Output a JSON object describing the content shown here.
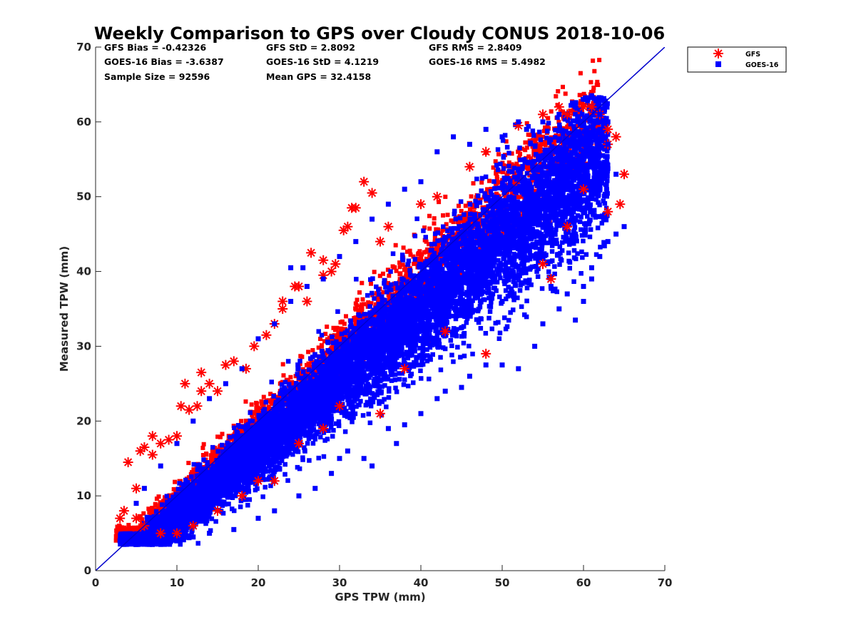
{
  "chart_data": {
    "type": "scatter",
    "title": "Weekly Comparison to GPS over Cloudy CONUS 2018-10-06",
    "xlabel": "GPS TPW (mm)",
    "ylabel": "Measured TPW (mm)",
    "xlim": [
      0,
      70
    ],
    "ylim": [
      0,
      70
    ],
    "xticks": [
      0,
      10,
      20,
      30,
      40,
      50,
      60,
      70
    ],
    "yticks": [
      0,
      10,
      20,
      30,
      40,
      50,
      60,
      70
    ],
    "grid": false,
    "reference_line": {
      "x": [
        0,
        70
      ],
      "y": [
        0,
        70
      ],
      "color": "#0000cc"
    },
    "legend": {
      "position": "outside-top-right"
    },
    "stats": [
      {
        "label": "GFS Bias = -0.42326"
      },
      {
        "label": "GFS StD = 2.8092"
      },
      {
        "label": "GFS RMS = 2.8409"
      },
      {
        "label": "GOES-16 Bias = -3.6387"
      },
      {
        "label": "GOES-16 StD = 4.1219"
      },
      {
        "label": "GOES-16 RMS = 5.4982"
      },
      {
        "label": "Sample Size = 92596"
      },
      {
        "label": "Mean GPS = 32.4158"
      }
    ],
    "series": [
      {
        "name": "GFS",
        "marker": "asterisk",
        "color": "#ff0000",
        "cloud": {
          "bias": -0.42326,
          "std": 2.8092,
          "x_range": [
            2.5,
            65
          ],
          "y_range": [
            4,
            62
          ],
          "notes": "dense band around y = x, outliers up to ~+10 above"
        },
        "outliers": [
          [
            3,
            7
          ],
          [
            3.5,
            8
          ],
          [
            4,
            14.5
          ],
          [
            5,
            11
          ],
          [
            5.5,
            16
          ],
          [
            6,
            16.5
          ],
          [
            7,
            18
          ],
          [
            7,
            15.5
          ],
          [
            8,
            17
          ],
          [
            9,
            17.5
          ],
          [
            10,
            18
          ],
          [
            10.5,
            22
          ],
          [
            11,
            25
          ],
          [
            11.5,
            21.5
          ],
          [
            12.5,
            22
          ],
          [
            13,
            26.5
          ],
          [
            13,
            24
          ],
          [
            14,
            25
          ],
          [
            15,
            24
          ],
          [
            16,
            27.5
          ],
          [
            17,
            28
          ],
          [
            18.5,
            27
          ],
          [
            19.5,
            30
          ],
          [
            21,
            31.5
          ],
          [
            22,
            33
          ],
          [
            23,
            35
          ],
          [
            23,
            36
          ],
          [
            24.5,
            38
          ],
          [
            25,
            38
          ],
          [
            26,
            36
          ],
          [
            26.5,
            42.5
          ],
          [
            28,
            41.5
          ],
          [
            28,
            39.5
          ],
          [
            29,
            40
          ],
          [
            29.5,
            41
          ],
          [
            30.5,
            45.5
          ],
          [
            31,
            46
          ],
          [
            31.5,
            48.5
          ],
          [
            32,
            48.5
          ],
          [
            33,
            52
          ],
          [
            34,
            50.5
          ],
          [
            35,
            44
          ],
          [
            36,
            46
          ],
          [
            40,
            49
          ],
          [
            42,
            50
          ],
          [
            46,
            54
          ],
          [
            48,
            56
          ],
          [
            52,
            59.5
          ],
          [
            55,
            61
          ],
          [
            57,
            62
          ],
          [
            58,
            61
          ],
          [
            60,
            62
          ],
          [
            61,
            62
          ],
          [
            62,
            61
          ],
          [
            63,
            59
          ],
          [
            63,
            57
          ],
          [
            64,
            58
          ],
          [
            65,
            53
          ],
          [
            64.5,
            49
          ],
          [
            63,
            48
          ],
          [
            60,
            51
          ],
          [
            58,
            46
          ],
          [
            56,
            39
          ],
          [
            55,
            41
          ],
          [
            48,
            29
          ],
          [
            43,
            32
          ],
          [
            38,
            27
          ],
          [
            35,
            21
          ],
          [
            30,
            22
          ],
          [
            28,
            19
          ],
          [
            25,
            17
          ],
          [
            22,
            12
          ],
          [
            20,
            12
          ],
          [
            18,
            10
          ],
          [
            15,
            8
          ],
          [
            12,
            6
          ],
          [
            10,
            5
          ],
          [
            8,
            5
          ],
          [
            6,
            6
          ],
          [
            5,
            7
          ]
        ]
      },
      {
        "name": "GOES-16",
        "marker": "square",
        "color": "#0000ff",
        "cloud": {
          "bias": -3.6387,
          "std": 4.1219,
          "x_range": [
            3,
            65
          ],
          "y_range": [
            3.5,
            63.5
          ],
          "notes": "dense band below y = x, widening with TPW"
        },
        "outliers": [
          [
            3,
            4
          ],
          [
            4,
            4
          ],
          [
            5,
            3.5
          ],
          [
            7,
            3.5
          ],
          [
            9,
            4
          ],
          [
            12,
            4.5
          ],
          [
            14,
            5
          ],
          [
            17,
            5.5
          ],
          [
            20,
            7
          ],
          [
            22,
            8
          ],
          [
            25,
            10
          ],
          [
            27,
            11
          ],
          [
            29,
            13
          ],
          [
            30,
            15
          ],
          [
            31,
            16
          ],
          [
            33,
            15
          ],
          [
            34,
            14
          ],
          [
            36,
            19
          ],
          [
            37,
            17
          ],
          [
            38,
            19.5
          ],
          [
            40,
            21
          ],
          [
            42,
            23
          ],
          [
            43,
            24
          ],
          [
            45,
            24.5
          ],
          [
            46,
            26
          ],
          [
            48,
            27.5
          ],
          [
            50,
            27.5
          ],
          [
            52,
            27
          ],
          [
            54,
            30
          ],
          [
            55,
            33
          ],
          [
            57,
            35
          ],
          [
            59,
            33.5
          ],
          [
            60,
            36
          ],
          [
            61,
            39
          ],
          [
            62,
            42
          ],
          [
            63,
            44
          ],
          [
            64,
            45
          ],
          [
            65,
            46
          ],
          [
            64,
            53
          ],
          [
            63,
            57
          ],
          [
            63,
            60
          ],
          [
            62,
            61
          ],
          [
            61,
            63.5
          ],
          [
            59,
            62
          ],
          [
            57,
            61
          ],
          [
            55,
            60
          ],
          [
            53,
            59
          ],
          [
            52,
            60
          ],
          [
            50,
            58
          ],
          [
            48,
            59
          ],
          [
            46,
            57
          ],
          [
            44,
            58
          ],
          [
            42,
            56
          ],
          [
            40,
            52
          ],
          [
            38,
            51
          ],
          [
            36,
            49
          ],
          [
            34,
            47
          ],
          [
            32,
            44
          ],
          [
            30,
            42
          ],
          [
            28,
            39
          ],
          [
            26,
            38
          ],
          [
            24,
            36
          ],
          [
            22,
            33
          ],
          [
            20,
            31
          ],
          [
            18,
            27
          ],
          [
            16,
            25
          ],
          [
            14,
            23
          ],
          [
            12,
            20
          ],
          [
            10,
            17
          ],
          [
            8,
            14
          ],
          [
            6,
            11
          ],
          [
            5,
            9
          ],
          [
            24,
            40.5
          ],
          [
            25.5,
            40.5
          ],
          [
            31,
            27
          ],
          [
            50,
            36
          ],
          [
            61,
            40.5
          ],
          [
            60,
            38
          ],
          [
            58,
            37
          ],
          [
            56,
            38
          ]
        ]
      }
    ]
  }
}
